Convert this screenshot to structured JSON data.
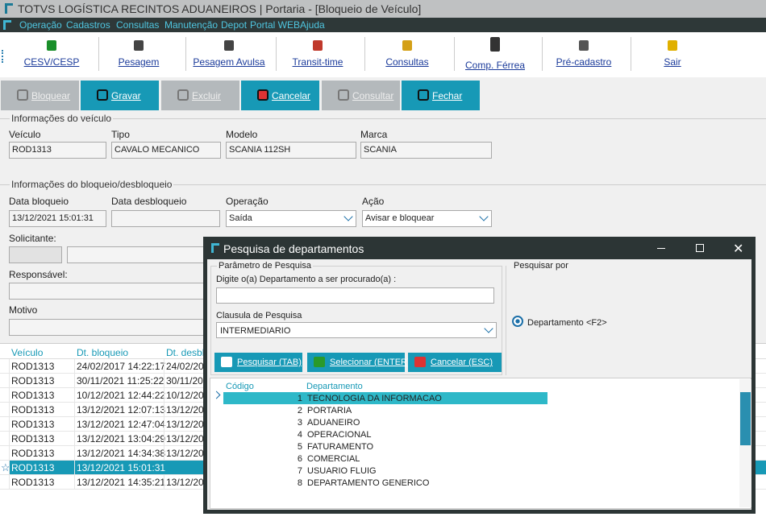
{
  "window": {
    "title": "TOTVS LOGÍSTICA RECINTOS ADUANEIROS | Portaria - [Bloqueio de Veículo]"
  },
  "menu": [
    "Operação",
    "Cadastros",
    "Consultas",
    "Manutenção",
    "Depot",
    "Portal WEB",
    "Ajuda"
  ],
  "toolbar": [
    "CESV/CESP",
    "Pesagem",
    "Pesagem Avulsa",
    "Transit-time",
    "Consultas",
    "Comp. Férrea",
    "Pré-cadastro",
    "Sair"
  ],
  "actions": [
    {
      "label": "Bloquear",
      "enabled": false
    },
    {
      "label": "Gravar",
      "enabled": true
    },
    {
      "label": "Excluir",
      "enabled": false
    },
    {
      "label": "Cancelar",
      "enabled": true
    },
    {
      "label": "Consultar",
      "enabled": false
    },
    {
      "label": "Fechar",
      "enabled": true
    }
  ],
  "vehicle": {
    "title": "Informações do veículo",
    "fields": [
      {
        "label": "Veículo",
        "value": "ROD1313"
      },
      {
        "label": "Tipo",
        "value": "CAVALO MECANICO"
      },
      {
        "label": "Modelo",
        "value": "SCANIA 112SH"
      },
      {
        "label": "Marca",
        "value": "SCANIA"
      }
    ]
  },
  "block": {
    "title": "Informações do bloqueio/desbloqueio",
    "fields": [
      {
        "label": "Data bloqueio",
        "value": "13/12/2021 15:01:31"
      },
      {
        "label": "Data desbloqueio"
      },
      {
        "label": "Operação",
        "value": "Saída"
      },
      {
        "label": "Ação",
        "value": "Avisar e bloquear"
      }
    ],
    "solicitante": "Solicitante:",
    "responsavel": "Responsável:",
    "motivo": "Motivo"
  },
  "grid": {
    "columns": [
      "Veículo",
      "Dt. bloqueio",
      "Dt. desbl"
    ],
    "rows": [
      {
        "cells": [
          "ROD1313",
          "24/02/2017 14:22:17",
          "24/02/20"
        ]
      },
      {
        "cells": [
          "ROD1313",
          "30/11/2021 11:25:22",
          "30/11/20"
        ]
      },
      {
        "cells": [
          "ROD1313",
          "10/12/2021 12:44:22",
          "10/12/20"
        ]
      },
      {
        "cells": [
          "ROD1313",
          "13/12/2021 12:07:13",
          "13/12/20"
        ]
      },
      {
        "cells": [
          "ROD1313",
          "13/12/2021 12:47:04",
          "13/12/20"
        ]
      },
      {
        "cells": [
          "ROD1313",
          "13/12/2021 13:04:29",
          "13/12/20"
        ]
      },
      {
        "cells": [
          "ROD1313",
          "13/12/2021 14:34:38",
          "13/12/20"
        ]
      },
      {
        "cells": [
          "ROD1313",
          "13/12/2021 15:01:31"
        ],
        "selected": true
      },
      {
        "cells": [
          "ROD1313",
          "13/12/2021 14:35:21",
          "13/12/20"
        ]
      }
    ]
  },
  "dialog": {
    "title": "Pesquisa de departamentos",
    "param_group": "Parâmetro de Pesquisa",
    "search_label": "Digite o(a) Departamento a ser procurado(a) :",
    "clause_label": "Clausula de Pesquisa",
    "clause_value": "INTERMEDIARIO",
    "by_group": "Pesquisar por",
    "by_option": "Departamento",
    "by_key": "<F2>",
    "buttons": [
      "Pesquisar (TAB)",
      "Selecionar (ENTER)",
      "Cancelar (ESC)"
    ],
    "columns": [
      "Código",
      "Departamento"
    ],
    "rows": [
      {
        "code": 1,
        "name": "TECNOLOGIA DA INFORMACAO",
        "selected": true
      },
      {
        "code": 2,
        "name": "PORTARIA"
      },
      {
        "code": 3,
        "name": "ADUANEIRO"
      },
      {
        "code": 4,
        "name": "OPERACIONAL"
      },
      {
        "code": 5,
        "name": "FATURAMENTO"
      },
      {
        "code": 6,
        "name": "COMERCIAL"
      },
      {
        "code": 7,
        "name": "USUARIO FLUIG"
      },
      {
        "code": 8,
        "name": "DEPARTAMENTO GENERICO"
      }
    ]
  }
}
